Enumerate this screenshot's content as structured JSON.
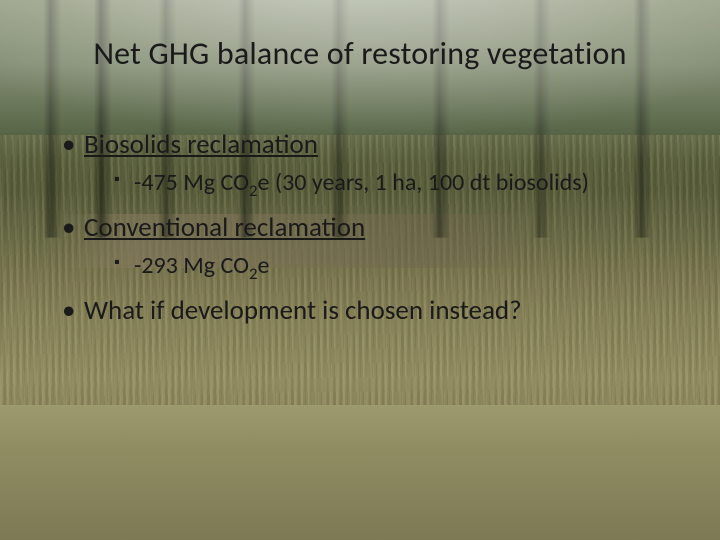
{
  "slide": {
    "background": {
      "description": "photo of regrowing forest with tall grass/meadow foreground and conifer trees behind, fallen logs mid-ground",
      "palette": {
        "forest_dark": "#3e4d2d",
        "forest_mid": "#5a6843",
        "forest_light": "#6d7a54",
        "grass_light": "#a49f6e",
        "grass_mid": "#8d8a5c",
        "grass_dark": "#7b774e",
        "log": "#8a8060"
      }
    },
    "title": "Net GHG balance of restoring vegetation",
    "title_fontsize_pt": 32,
    "text_color": "#1a1a1a",
    "body_fontsize_pt": 27,
    "sub_fontsize_pt": 24,
    "bullets": [
      {
        "text": "Biosolids reclamation",
        "underlined": true,
        "sub": [
          {
            "prefix": "-475 Mg CO",
            "subscript": "2",
            "suffix": "e (30 years, 1 ha, 100 dt biosolids)"
          }
        ]
      },
      {
        "text": "Conventional reclamation",
        "underlined": true,
        "sub": [
          {
            "prefix": "-293 Mg CO",
            "subscript": "2",
            "suffix": "e"
          }
        ]
      },
      {
        "text": "What if development is chosen instead?",
        "underlined": false,
        "sub": []
      }
    ]
  }
}
